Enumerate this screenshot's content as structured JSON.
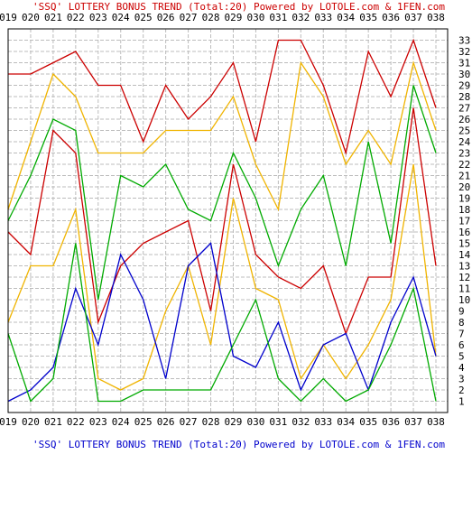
{
  "header": {
    "title": "'SSQ' LOTTERY BONUS TREND (Total:20)  Powered by LOTOLE.com & 1FEN.com"
  },
  "footer": {
    "caption": "'SSQ' LOTTERY BONUS TREND (Total:20)  Powered by LOTOLE.com & 1FEN.com"
  },
  "chart_data": {
    "type": "line",
    "title": "'SSQ' LOTTERY BONUS TREND (Total:20)  Powered by LOTOLE.com & 1FEN.com",
    "categories": [
      "019",
      "020",
      "021",
      "022",
      "023",
      "024",
      "025",
      "026",
      "027",
      "028",
      "029",
      "030",
      "031",
      "032",
      "033",
      "034",
      "035",
      "036",
      "037",
      "038"
    ],
    "y_ticks": [
      1,
      2,
      3,
      4,
      5,
      6,
      7,
      8,
      9,
      10,
      11,
      12,
      13,
      14,
      15,
      16,
      17,
      18,
      19,
      20,
      21,
      22,
      23,
      24,
      25,
      26,
      27,
      28,
      29,
      30,
      31,
      32,
      33
    ],
    "ylim": [
      0,
      34
    ],
    "grid": true,
    "series": [
      {
        "color": "#cc0000",
        "values": [
          30,
          30,
          31,
          32,
          29,
          29,
          24,
          29,
          26,
          28,
          31,
          24,
          33,
          33,
          29,
          23,
          32,
          28,
          33,
          27
        ]
      },
      {
        "color": "#f0b400",
        "values": [
          18,
          24,
          30,
          28,
          23,
          23,
          23,
          25,
          25,
          25,
          28,
          22,
          18,
          31,
          28,
          22,
          25,
          22,
          31,
          25
        ]
      },
      {
        "color": "#00aa00",
        "values": [
          17,
          21,
          26,
          25,
          10,
          21,
          20,
          22,
          18,
          17,
          23,
          19,
          13,
          18,
          21,
          13,
          24,
          15,
          29,
          23
        ]
      },
      {
        "color": "#cc0000",
        "values": [
          16,
          14,
          25,
          23,
          8,
          13,
          15,
          16,
          17,
          9,
          22,
          14,
          12,
          11,
          13,
          7,
          12,
          12,
          27,
          13
        ]
      },
      {
        "color": "#f0b400",
        "values": [
          8,
          13,
          13,
          18,
          3,
          2,
          3,
          9,
          13,
          6,
          19,
          11,
          10,
          3,
          6,
          3,
          6,
          10,
          22,
          5
        ]
      },
      {
        "color": "#0000cc",
        "values": [
          1,
          2,
          4,
          11,
          6,
          14,
          10,
          3,
          13,
          15,
          5,
          4,
          8,
          2,
          6,
          7,
          2,
          8,
          12,
          5
        ]
      },
      {
        "color": "#00aa00",
        "values": [
          7,
          1,
          3,
          15,
          1,
          1,
          2,
          2,
          2,
          2,
          6,
          10,
          3,
          1,
          3,
          1,
          2,
          6,
          11,
          1
        ]
      }
    ]
  }
}
